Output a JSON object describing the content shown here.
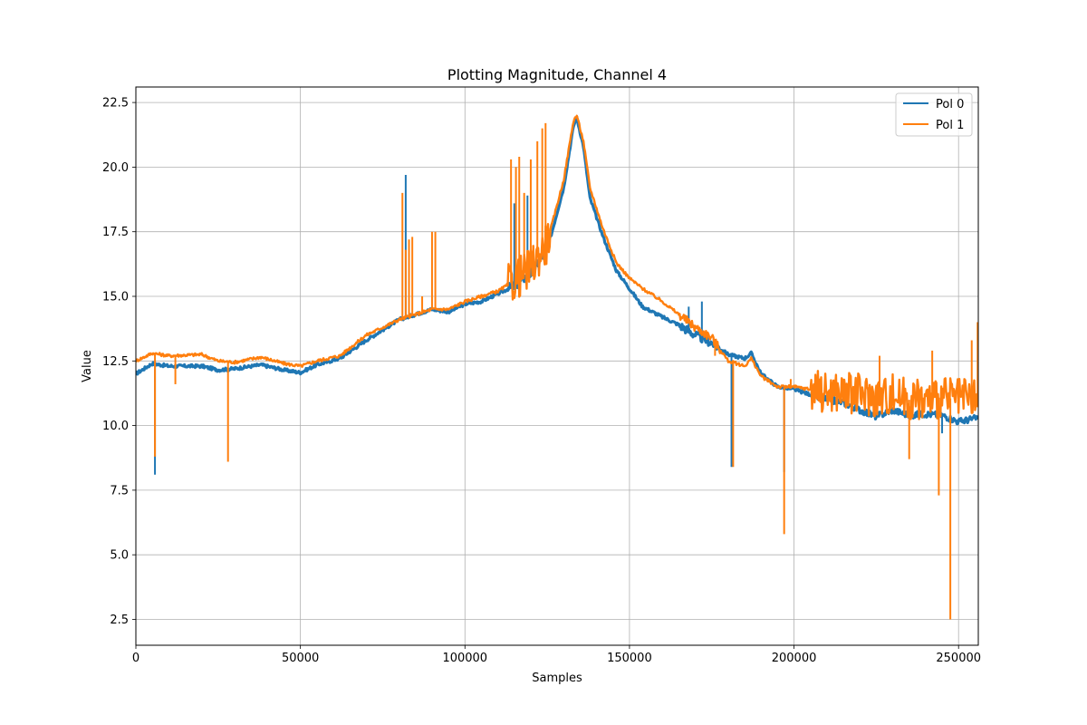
{
  "chart_data": {
    "type": "line",
    "title": "Plotting Magnitude, Channel 4",
    "xlabel": "Samples",
    "ylabel": "Value",
    "xlim": [
      0,
      256000
    ],
    "ylim": [
      1.5,
      23.1
    ],
    "xticks": [
      0,
      50000,
      100000,
      150000,
      200000,
      250000
    ],
    "xtick_labels": [
      "0",
      "50000",
      "100000",
      "150000",
      "200000",
      "250000"
    ],
    "yticks": [
      2.5,
      5.0,
      7.5,
      10.0,
      12.5,
      15.0,
      17.5,
      20.0,
      22.5
    ],
    "ytick_labels": [
      "2.5",
      "5.0",
      "7.5",
      "10.0",
      "12.5",
      "15.0",
      "17.5",
      "20.0",
      "22.5"
    ],
    "grid": true,
    "legend_position": "top-right",
    "series": [
      {
        "name": "Pol 0",
        "color": "#1f77b4",
        "base": [
          [
            0,
            12.0
          ],
          [
            5000,
            12.4
          ],
          [
            10000,
            12.3
          ],
          [
            20000,
            12.3
          ],
          [
            25000,
            12.15
          ],
          [
            30000,
            12.2
          ],
          [
            38000,
            12.35
          ],
          [
            45000,
            12.15
          ],
          [
            50000,
            12.05
          ],
          [
            55000,
            12.35
          ],
          [
            62000,
            12.6
          ],
          [
            70000,
            13.3
          ],
          [
            80000,
            14.1
          ],
          [
            90000,
            14.5
          ],
          [
            95000,
            14.4
          ],
          [
            100000,
            14.7
          ],
          [
            105000,
            14.8
          ],
          [
            110000,
            15.1
          ],
          [
            115000,
            15.4
          ],
          [
            120000,
            15.9
          ],
          [
            125000,
            16.8
          ],
          [
            130000,
            19.2
          ],
          [
            133000,
            21.6
          ],
          [
            134000,
            21.9
          ],
          [
            136000,
            20.8
          ],
          [
            138000,
            18.8
          ],
          [
            142000,
            17.3
          ],
          [
            146000,
            16.0
          ],
          [
            150000,
            15.3
          ],
          [
            154000,
            14.6
          ],
          [
            160000,
            14.2
          ],
          [
            165000,
            13.9
          ],
          [
            170000,
            13.5
          ],
          [
            175000,
            13.2
          ],
          [
            180000,
            12.75
          ],
          [
            185000,
            12.6
          ],
          [
            187000,
            12.8
          ],
          [
            190000,
            12.0
          ],
          [
            195000,
            11.5
          ],
          [
            200000,
            11.4
          ],
          [
            205000,
            11.2
          ],
          [
            210000,
            11.0
          ],
          [
            215000,
            10.9
          ],
          [
            220000,
            10.6
          ],
          [
            225000,
            10.35
          ],
          [
            230000,
            10.6
          ],
          [
            235000,
            10.4
          ],
          [
            240000,
            10.45
          ],
          [
            245000,
            10.4
          ],
          [
            250000,
            10.15
          ],
          [
            256000,
            10.3
          ]
        ],
        "spikes": [
          [
            5800,
            8.1
          ],
          [
            82000,
            19.7
          ],
          [
            115000,
            18.6
          ],
          [
            119000,
            18.9
          ],
          [
            120000,
            16.2
          ],
          [
            168000,
            14.6
          ],
          [
            172000,
            14.8
          ],
          [
            181000,
            8.4
          ],
          [
            197000,
            8.2
          ],
          [
            245000,
            9.7
          ]
        ]
      },
      {
        "name": "Pol 1",
        "color": "#ff7f0e",
        "base": [
          [
            0,
            12.5
          ],
          [
            5000,
            12.8
          ],
          [
            10000,
            12.7
          ],
          [
            20000,
            12.75
          ],
          [
            25000,
            12.5
          ],
          [
            30000,
            12.45
          ],
          [
            38000,
            12.65
          ],
          [
            45000,
            12.4
          ],
          [
            50000,
            12.3
          ],
          [
            55000,
            12.5
          ],
          [
            62000,
            12.7
          ],
          [
            70000,
            13.5
          ],
          [
            80000,
            14.1
          ],
          [
            90000,
            14.5
          ],
          [
            95000,
            14.5
          ],
          [
            100000,
            14.8
          ],
          [
            105000,
            15.0
          ],
          [
            110000,
            15.2
          ],
          [
            115000,
            15.6
          ],
          [
            120000,
            16.1
          ],
          [
            125000,
            17.1
          ],
          [
            130000,
            19.5
          ],
          [
            133000,
            21.8
          ],
          [
            134000,
            22.0
          ],
          [
            136000,
            21.0
          ],
          [
            138000,
            19.2
          ],
          [
            142000,
            17.6
          ],
          [
            146000,
            16.3
          ],
          [
            150000,
            15.7
          ],
          [
            154000,
            15.3
          ],
          [
            160000,
            14.8
          ],
          [
            165000,
            14.3
          ],
          [
            170000,
            13.8
          ],
          [
            175000,
            13.4
          ],
          [
            180000,
            12.5
          ],
          [
            185000,
            12.3
          ],
          [
            187000,
            12.6
          ],
          [
            190000,
            11.9
          ],
          [
            195000,
            11.5
          ],
          [
            200000,
            11.5
          ],
          [
            205000,
            11.4
          ],
          [
            210000,
            11.3
          ],
          [
            215000,
            11.3
          ],
          [
            220000,
            11.2
          ],
          [
            225000,
            11.1
          ],
          [
            230000,
            11.2
          ],
          [
            235000,
            11.0
          ],
          [
            240000,
            11.0
          ],
          [
            245000,
            11.1
          ],
          [
            250000,
            11.0
          ],
          [
            256000,
            11.0
          ]
        ],
        "spikes": [
          [
            5800,
            8.8
          ],
          [
            12000,
            11.6
          ],
          [
            28000,
            8.6
          ],
          [
            81000,
            19.0
          ],
          [
            82000,
            16.8
          ],
          [
            83000,
            17.2
          ],
          [
            84000,
            17.3
          ],
          [
            87000,
            15.0
          ],
          [
            90000,
            17.5
          ],
          [
            91000,
            17.5
          ],
          [
            114000,
            20.3
          ],
          [
            115500,
            20.0
          ],
          [
            116500,
            20.4
          ],
          [
            118000,
            19.0
          ],
          [
            120000,
            20.3
          ],
          [
            122000,
            21.0
          ],
          [
            123500,
            21.5
          ],
          [
            124500,
            21.7
          ],
          [
            176000,
            12.7
          ],
          [
            181500,
            8.4
          ],
          [
            197000,
            5.8
          ],
          [
            199000,
            11.8
          ],
          [
            235000,
            8.7
          ],
          [
            244000,
            7.3
          ],
          [
            247500,
            2.5
          ],
          [
            226000,
            12.7
          ],
          [
            242000,
            12.9
          ],
          [
            254000,
            13.3
          ],
          [
            255800,
            14.0
          ]
        ]
      }
    ]
  }
}
